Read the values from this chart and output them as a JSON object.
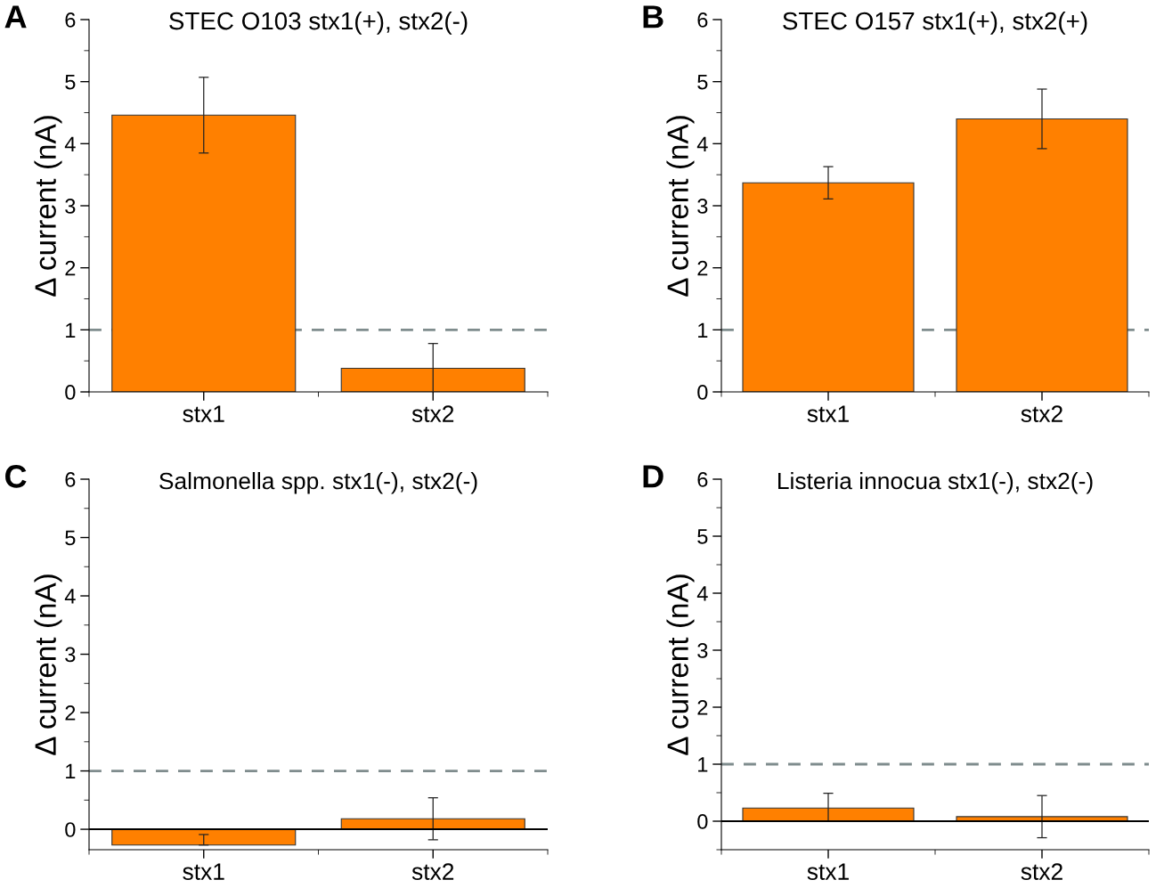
{
  "chart_data": [
    {
      "type": "bar",
      "title": "STEC O103 stx1(+), stx2(-)",
      "ylabel": "Δ current (nA)",
      "categories": [
        "stx1",
        "stx2"
      ],
      "values": [
        4.46,
        0.38
      ],
      "errors": [
        0.61,
        0.4
      ],
      "color": "#ff8000",
      "ylim": [
        0,
        6
      ],
      "yticks": [
        0,
        1,
        2,
        3,
        4,
        5,
        6
      ],
      "ref_lines": [
        {
          "axis": "y",
          "value": 1,
          "color": "#7f8c8d",
          "line_style": "dashed"
        }
      ],
      "annotations": [
        "A"
      ]
    },
    {
      "type": "bar",
      "title": "STEC O157 stx1(+), stx2(+)",
      "ylabel": "Δ current (nA)",
      "categories": [
        "stx1",
        "stx2"
      ],
      "values": [
        3.37,
        4.4
      ],
      "errors": [
        0.26,
        0.48
      ],
      "color": "#ff8000",
      "ylim": [
        0,
        6
      ],
      "yticks": [
        0,
        1,
        2,
        3,
        4,
        5,
        6
      ],
      "ref_lines": [
        {
          "axis": "y",
          "value": 1,
          "color": "#7f8c8d",
          "line_style": "dashed"
        }
      ],
      "annotations": [
        "B"
      ]
    },
    {
      "type": "bar",
      "title": "Salmonella spp. stx1(-), stx2(-)",
      "ylabel": "Δ current (nA)",
      "categories": [
        "stx1",
        "stx2"
      ],
      "values": [
        -0.27,
        0.18
      ],
      "errors": [
        [
          -0.27,
          -0.09
        ],
        0.36
      ],
      "color": "#ff8000",
      "ylim": [
        -0.35,
        6
      ],
      "yticks": [
        0,
        1,
        2,
        3,
        4,
        5,
        6
      ],
      "ref_lines": [
        {
          "axis": "y",
          "value": 1,
          "color": "#7f8c8d",
          "line_style": "dashed"
        },
        {
          "axis": "y",
          "value": 0,
          "color": "#000000",
          "line_style": "solid"
        }
      ],
      "annotations": [
        "C"
      ]
    },
    {
      "type": "bar",
      "title": "Listeria innocua stx1(-), stx2(-)",
      "ylabel": "Δ current (nA)",
      "categories": [
        "stx1",
        "stx2"
      ],
      "values": [
        0.23,
        0.08
      ],
      "errors": [
        [
          0,
          0.49
        ],
        0.37
      ],
      "color": "#ff8000",
      "ylim": [
        -0.5,
        6
      ],
      "yticks": [
        0,
        1,
        2,
        3,
        4,
        5,
        6
      ],
      "ref_lines": [
        {
          "axis": "y",
          "value": 1,
          "color": "#7f8c8d",
          "line_style": "dashed"
        },
        {
          "axis": "y",
          "value": 0,
          "color": "#000000",
          "line_style": "solid"
        }
      ],
      "annotations": [
        "D"
      ]
    }
  ]
}
